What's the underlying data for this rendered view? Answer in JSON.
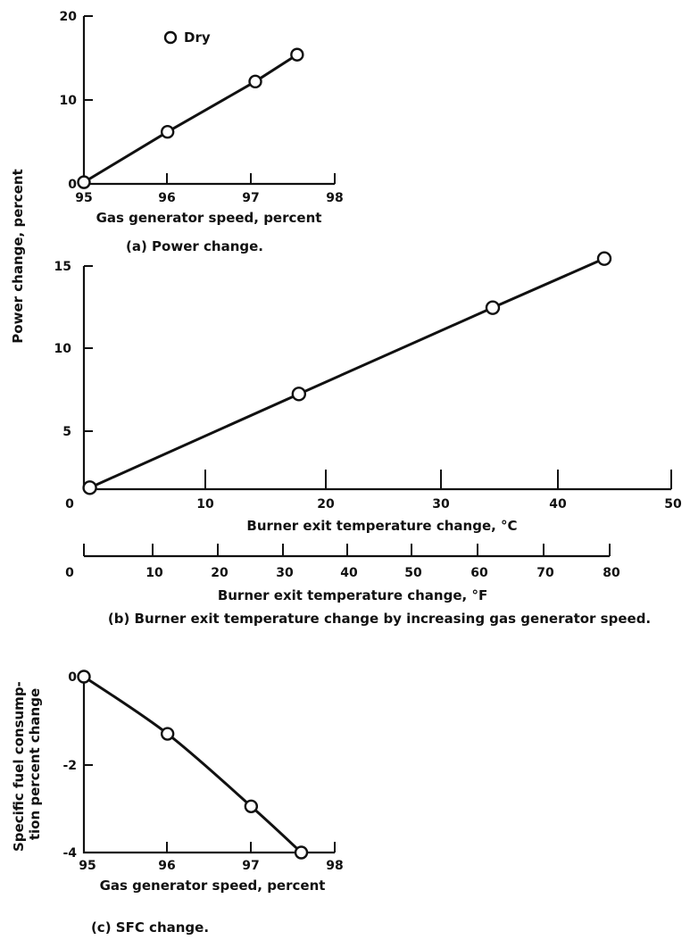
{
  "chart_data": [
    {
      "id": "a",
      "type": "line",
      "caption": "(a) Power change.",
      "xlabel": "Gas generator speed, percent",
      "ylabel": "",
      "xlim": [
        95,
        98
      ],
      "ylim": [
        0,
        20
      ],
      "xticks": [
        95,
        96,
        97,
        98
      ],
      "yticks": [
        0,
        10,
        20
      ],
      "legend": {
        "label": "Dry",
        "marker": "open-circle",
        "position": "top-left"
      },
      "series": [
        {
          "name": "Dry",
          "x": [
            95,
            96,
            97.05,
            97.55
          ],
          "y": [
            0.2,
            6.2,
            12.2,
            15.4
          ]
        }
      ]
    },
    {
      "id": "b",
      "type": "line",
      "caption": "(b) Burner exit temperature change by increasing gas generator speed.",
      "xlabel": "Burner exit temperature change, °C",
      "xlabel_secondary": "Burner exit temperature change, °F",
      "ylabel": "",
      "xlim": [
        0,
        50
      ],
      "ylim": [
        0,
        15
      ],
      "xticks": [
        0,
        10,
        20,
        30,
        40,
        50
      ],
      "yticks": [
        5,
        10,
        15
      ],
      "xticks_secondary": [
        0,
        10,
        20,
        30,
        40,
        50,
        60,
        70,
        80
      ],
      "series": [
        {
          "x": [
            0.5,
            18.3,
            34.8,
            44.3
          ],
          "y": [
            0.1,
            6.4,
            12.2,
            15.5
          ]
        }
      ]
    },
    {
      "id": "c",
      "type": "line",
      "caption": "(c) SFC change.",
      "xlabel": "Gas generator speed, percent",
      "ylabel": "Specific fuel consump-\ntion percent change",
      "xlim": [
        95,
        98
      ],
      "ylim": [
        -4,
        0
      ],
      "xticks": [
        95,
        96,
        97,
        98
      ],
      "yticks": [
        0,
        -2,
        -4
      ],
      "series": [
        {
          "x": [
            95,
            96,
            97,
            97.6
          ],
          "y": [
            0,
            -1.3,
            -2.95,
            -4.0
          ]
        }
      ]
    }
  ],
  "shared": {
    "ylabel_power": "Power change, percent"
  },
  "tick_text": {
    "a_x": [
      "95",
      "96",
      "97",
      "98"
    ],
    "a_y": [
      "0",
      "10",
      "20"
    ],
    "b_x": [
      "0",
      "10",
      "20",
      "30",
      "40",
      "50"
    ],
    "b_y": [
      "5",
      "10",
      "15"
    ],
    "b_zero_y": "0",
    "b_f": [
      "0",
      "10",
      "20",
      "30",
      "40",
      "50",
      "60",
      "70",
      "80"
    ],
    "c_x": [
      "95",
      "96",
      "97",
      "98"
    ],
    "c_y": [
      "0",
      "-2",
      "-4"
    ]
  },
  "labels": {
    "a_xlabel": "Gas generator speed, percent",
    "a_caption": "(a) Power change.",
    "legend_dry": "Dry",
    "b_xlabel_c": "Burner exit temperature change, ",
    "b_xlabel_c_unit": "°C",
    "b_xlabel_f": "Burner exit temperature change, ",
    "b_xlabel_f_unit": "°F",
    "b_caption": "(b) Burner exit temperature change by increasing gas generator speed.",
    "c_ylabel_line1": "Specific fuel consump-",
    "c_ylabel_line2": "tion percent change",
    "c_xlabel": "Gas generator speed, percent",
    "c_caption": "(c) SFC change."
  }
}
